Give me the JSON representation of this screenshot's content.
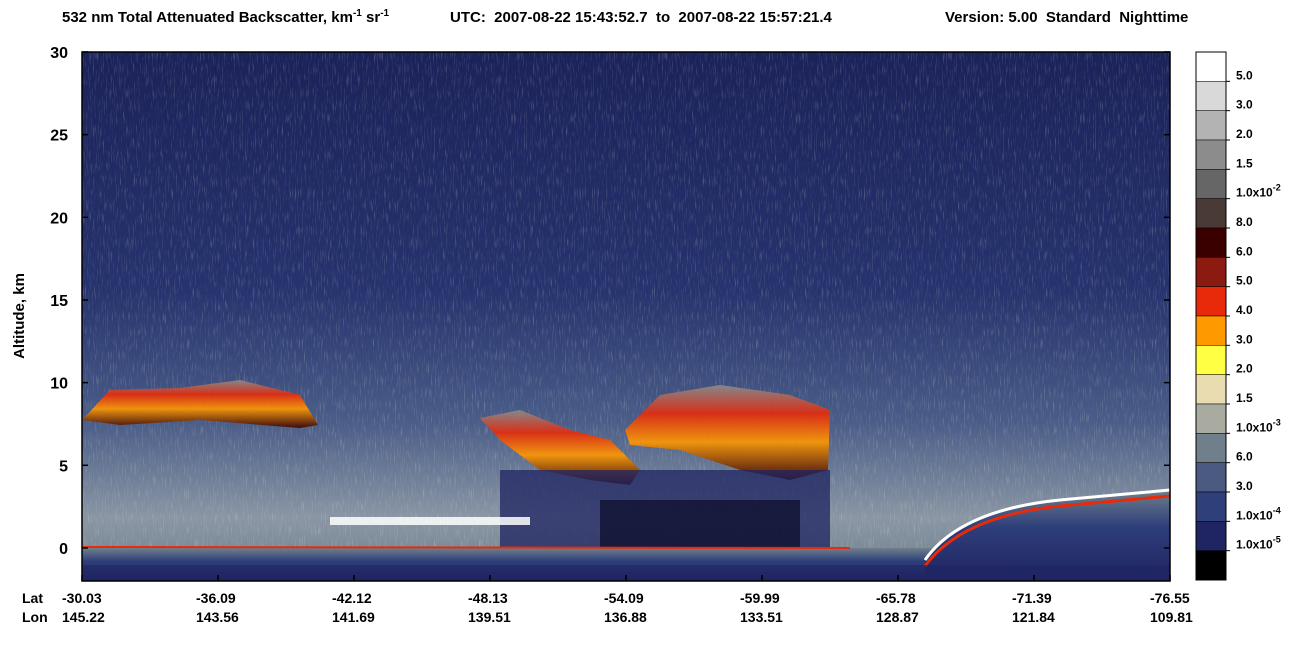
{
  "chart_data": {
    "type": "heatmap",
    "title": {
      "text": "532 nm Total Attenuated Backscatter, km",
      "sup1": "-1",
      "text2": " sr",
      "sup2": "-1"
    },
    "time_range": "UTC:  2007-08-22 15:43:52.7  to  2007-08-22 15:57:21.4",
    "version": "Version: 5.00  Standard  Nighttime",
    "ylabel": "Altitude, km",
    "ylim": [
      -2,
      30
    ],
    "yticks": [
      0,
      5,
      10,
      15,
      20,
      25,
      30
    ],
    "x_row_labels": [
      "Lat",
      "Lon"
    ],
    "x_lat": [
      -30.03,
      -36.09,
      -42.12,
      -48.13,
      -54.09,
      -59.99,
      -65.78,
      -71.39,
      -76.55
    ],
    "x_lon": [
      145.22,
      143.56,
      141.69,
      139.51,
      136.88,
      133.51,
      128.87,
      121.84,
      109.81
    ],
    "colorbar": {
      "colors": [
        "#ffffff",
        "#d9d9d9",
        "#b3b3b3",
        "#8c8c8c",
        "#666666",
        "#4a3a36",
        "#3a0000",
        "#8b1a10",
        "#e82a0a",
        "#ff9900",
        "#ffff44",
        "#e8dcb0",
        "#a9aba0",
        "#6f7f8c",
        "#4a5a80",
        "#2e3f7a",
        "#1f2462",
        "#000000"
      ],
      "labels": [
        {
          "text": "5.0"
        },
        {
          "text": "3.0"
        },
        {
          "text": "2.0"
        },
        {
          "text": "1.5"
        },
        {
          "text": "1.0x10",
          "sup": "-2"
        },
        {
          "text": "8.0"
        },
        {
          "text": "6.0"
        },
        {
          "text": "5.0"
        },
        {
          "text": "4.0"
        },
        {
          "text": "3.0"
        },
        {
          "text": "2.0"
        },
        {
          "text": "1.5"
        },
        {
          "text": "1.0x10",
          "sup": "-3"
        },
        {
          "text": "6.0"
        },
        {
          "text": "3.0"
        },
        {
          "text": "1.0x10",
          "sup": "-4"
        },
        {
          "text": "1.0x10",
          "sup": "-5"
        }
      ]
    }
  }
}
